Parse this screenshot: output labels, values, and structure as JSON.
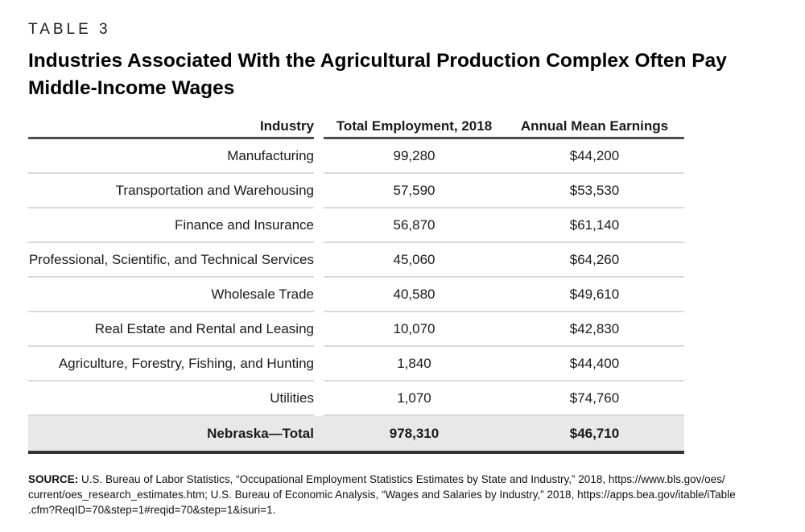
{
  "page": {
    "kicker": "TABLE 3",
    "title_line1": "Industries Associated With the Agricultural Production Complex Often Pay",
    "title_line2": "Middle-Income Wages"
  },
  "table": {
    "columns": {
      "industry": "Industry",
      "employment": "Total Employment, 2018",
      "earnings": "Annual Mean Earnings"
    },
    "rows": [
      {
        "industry": "Manufacturing",
        "employment": "99,280",
        "earnings": "$44,200"
      },
      {
        "industry": "Transportation and Warehousing",
        "employment": "57,590",
        "earnings": "$53,530"
      },
      {
        "industry": "Finance and Insurance",
        "employment": "56,870",
        "earnings": "$61,140"
      },
      {
        "industry": "Professional, Scientific, and Technical Services",
        "employment": "45,060",
        "earnings": "$64,260"
      },
      {
        "industry": "Wholesale Trade",
        "employment": "40,580",
        "earnings": "$49,610"
      },
      {
        "industry": "Real Estate and Rental and Leasing",
        "employment": "10,070",
        "earnings": "$42,830"
      },
      {
        "industry": "Agriculture, Forestry, Fishing, and Hunting",
        "employment": "1,840",
        "earnings": "$44,400"
      },
      {
        "industry": "Utilities",
        "employment": "1,070",
        "earnings": "$74,760"
      }
    ],
    "total": {
      "industry": "Nebraska—Total",
      "employment": "978,310",
      "earnings": "$46,710"
    }
  },
  "source": {
    "label": "SOURCE:",
    "lines": [
      "U.S. Bureau of Labor Statistics, “Occupational Employment Statistics Estimates by State and Industry,” 2018, https://www.bls.gov/oes/",
      "current/oes_research_estimates.htm; U.S. Bureau of Economic Analysis, “Wages and Salaries by Industry,” 2018, https://apps.bea.gov/itable/iTable",
      ".cfm?ReqID=70&step=1#reqid=70&step=1&isuri=1."
    ]
  },
  "colors": {
    "header_rule": "#4d4d4d",
    "row_rule": "#d9d9d9",
    "total_row_bg": "#e8e8e8",
    "bottom_rule": "#333333"
  }
}
